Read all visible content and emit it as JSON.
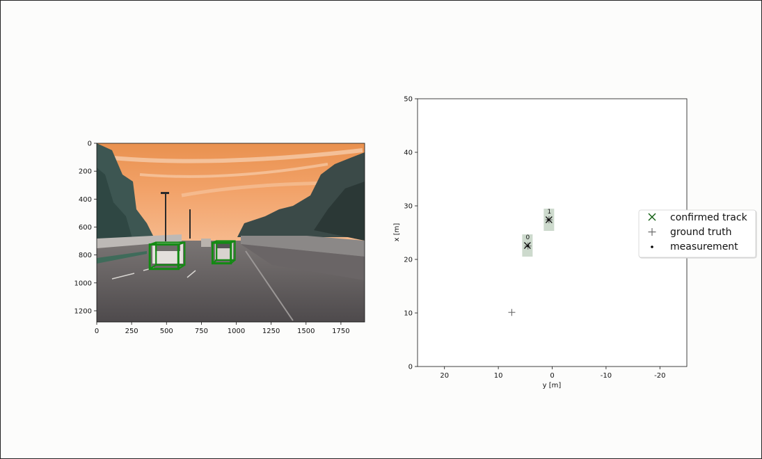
{
  "chart_data": [
    {
      "type": "image",
      "xlim": [
        0,
        1920
      ],
      "ylim": [
        0,
        1280
      ],
      "xticks": [
        "0",
        "250",
        "500",
        "750",
        "1000",
        "1250",
        "1500",
        "1750"
      ],
      "yticks": [
        "0",
        "200",
        "400",
        "600",
        "800",
        "1000",
        "1200"
      ],
      "xtick_values": [
        0,
        250,
        500,
        750,
        1000,
        1250,
        1500,
        1750
      ],
      "ytick_values": [
        0,
        200,
        400,
        600,
        800,
        1000,
        1200
      ],
      "boxes": [
        {
          "x": [
            380,
            630
          ],
          "y": [
            710,
            900
          ],
          "color": "#138a13"
        },
        {
          "x": [
            830,
            990
          ],
          "y": [
            700,
            860
          ],
          "color": "#138a13"
        }
      ]
    },
    {
      "type": "scatter",
      "xlabel": "y [m]",
      "ylabel": "x [m]",
      "xlim": [
        25,
        -25
      ],
      "ylim": [
        0,
        50
      ],
      "xticks": [
        "20",
        "10",
        "0",
        "-10",
        "-20"
      ],
      "xtick_values": [
        20,
        10,
        0,
        -10,
        -20
      ],
      "yticks": [
        "0",
        "10",
        "20",
        "30",
        "40",
        "50"
      ],
      "ytick_values": [
        0,
        10,
        20,
        30,
        40,
        50
      ],
      "legend": {
        "placement": "right",
        "entries": [
          "confirmed track",
          "ground truth",
          "measurement"
        ]
      },
      "tracks": [
        {
          "id": "0",
          "y": 4.6,
          "x": 22.6
        },
        {
          "id": "1",
          "y": 0.6,
          "x": 27.4
        }
      ],
      "ground_truth": [
        {
          "y": 4.5,
          "x": 22.5
        },
        {
          "y": 0.6,
          "x": 27.4
        },
        {
          "y": 7.5,
          "x": 10.1
        }
      ],
      "measurements": [
        {
          "y": 4.5,
          "x": 22.5
        },
        {
          "y": 0.7,
          "x": 27.4
        }
      ],
      "colors": {
        "track": "#0d5c0d",
        "ground_truth": "#6b6b6b",
        "measurement": "#000000",
        "uncertainty": "#4a7a4a"
      }
    }
  ]
}
